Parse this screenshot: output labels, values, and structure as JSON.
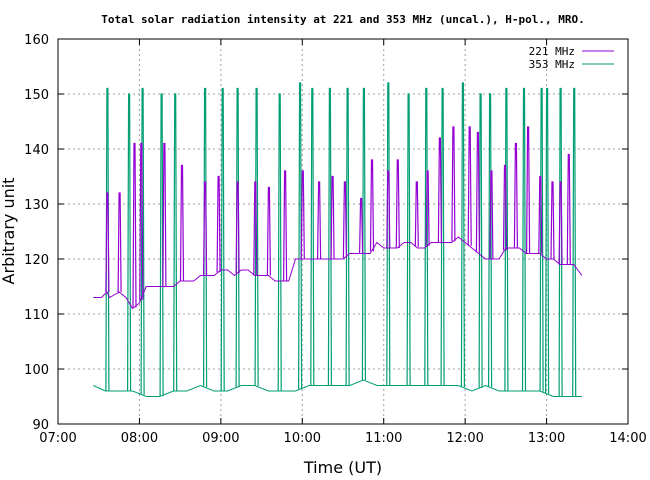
{
  "chart_data": {
    "type": "line",
    "title": "Total solar radiation intensity at 221 and 353 MHz (uncal.), H-pol., MRO.",
    "xlabel": "Time (UT)",
    "ylabel": "Arbitrary unit",
    "xlim": [
      "07:00",
      "14:00"
    ],
    "ylim": [
      90,
      160
    ],
    "x_ticks": [
      "07:00",
      "08:00",
      "09:00",
      "10:00",
      "11:00",
      "12:00",
      "13:00",
      "14:00"
    ],
    "y_ticks": [
      "90",
      "100",
      "110",
      "120",
      "130",
      "140",
      "150",
      "160"
    ],
    "grid": true,
    "legend_position": "top-right",
    "series": [
      {
        "name": "221 MHz",
        "color": "#9400d3",
        "x": [
          "07:26",
          "07:32",
          "07:36",
          "07:38",
          "07:45",
          "07:50",
          "07:55",
          "08:00",
          "08:05",
          "08:10",
          "08:15",
          "08:20",
          "08:25",
          "08:30",
          "08:35",
          "08:40",
          "08:45",
          "08:50",
          "08:55",
          "09:00",
          "09:05",
          "09:10",
          "09:15",
          "09:20",
          "09:25",
          "09:30",
          "09:35",
          "09:40",
          "09:45",
          "09:50",
          "09:55",
          "10:00",
          "10:05",
          "10:10",
          "10:15",
          "10:20",
          "10:25",
          "10:30",
          "10:35",
          "10:40",
          "10:45",
          "10:50",
          "10:55",
          "11:00",
          "11:05",
          "11:10",
          "11:15",
          "11:20",
          "11:25",
          "11:30",
          "11:35",
          "11:40",
          "11:45",
          "11:50",
          "11:55",
          "12:00",
          "12:05",
          "12:10",
          "12:15",
          "12:20",
          "12:25",
          "12:30",
          "12:35",
          "12:40",
          "12:45",
          "12:50",
          "12:55",
          "13:00",
          "13:05",
          "13:10",
          "13:15",
          "13:20",
          "13:26"
        ],
        "values": [
          113,
          113,
          114,
          113,
          114,
          113,
          111,
          112,
          115,
          115,
          115,
          115,
          115,
          116,
          116,
          116,
          117,
          117,
          117,
          118,
          118,
          117,
          118,
          118,
          117,
          117,
          117,
          116,
          116,
          116,
          120,
          120,
          120,
          120,
          120,
          120,
          120,
          120,
          121,
          121,
          121,
          121,
          123,
          122,
          122,
          122,
          123,
          123,
          122,
          122,
          123,
          123,
          123,
          123,
          124,
          123,
          122,
          121,
          120,
          120,
          120,
          122,
          122,
          122,
          121,
          121,
          121,
          120,
          120,
          119,
          119,
          119,
          117
        ],
        "peaks": [
          {
            "x": "07:36",
            "value": 132
          },
          {
            "x": "07:45",
            "value": 132
          },
          {
            "x": "07:56",
            "value": 141
          },
          {
            "x": "08:01",
            "value": 141
          },
          {
            "x": "08:18",
            "value": 141
          },
          {
            "x": "08:31",
            "value": 137
          },
          {
            "x": "08:48",
            "value": 134
          },
          {
            "x": "08:58",
            "value": 135
          },
          {
            "x": "09:12",
            "value": 134
          },
          {
            "x": "09:25",
            "value": 134
          },
          {
            "x": "09:35",
            "value": 133
          },
          {
            "x": "09:47",
            "value": 136
          },
          {
            "x": "10:00",
            "value": 136
          },
          {
            "x": "10:12",
            "value": 134
          },
          {
            "x": "10:22",
            "value": 135
          },
          {
            "x": "10:31",
            "value": 134
          },
          {
            "x": "10:43",
            "value": 131
          },
          {
            "x": "10:51",
            "value": 138
          },
          {
            "x": "11:03",
            "value": 136
          },
          {
            "x": "11:10",
            "value": 138
          },
          {
            "x": "11:24",
            "value": 134
          },
          {
            "x": "11:32",
            "value": 136
          },
          {
            "x": "11:41",
            "value": 142
          },
          {
            "x": "11:51",
            "value": 144
          },
          {
            "x": "12:03",
            "value": 144
          },
          {
            "x": "12:09",
            "value": 143
          },
          {
            "x": "12:19",
            "value": 136
          },
          {
            "x": "12:29",
            "value": 137
          },
          {
            "x": "12:37",
            "value": 141
          },
          {
            "x": "12:46",
            "value": 144
          },
          {
            "x": "12:55",
            "value": 135
          },
          {
            "x": "13:04",
            "value": 134
          },
          {
            "x": "13:10",
            "value": 134
          },
          {
            "x": "13:16",
            "value": 139
          }
        ]
      },
      {
        "name": "353 MHz",
        "color": "#009e73",
        "x": [
          "07:26",
          "07:35",
          "07:45",
          "07:55",
          "08:05",
          "08:15",
          "08:25",
          "08:35",
          "08:45",
          "08:55",
          "09:05",
          "09:15",
          "09:25",
          "09:35",
          "09:45",
          "09:55",
          "10:05",
          "10:15",
          "10:25",
          "10:35",
          "10:45",
          "10:55",
          "11:05",
          "11:15",
          "11:25",
          "11:35",
          "11:45",
          "11:55",
          "12:05",
          "12:15",
          "12:25",
          "12:35",
          "12:45",
          "12:55",
          "13:05",
          "13:15",
          "13:26"
        ],
        "values": [
          97,
          96,
          96,
          96,
          95,
          95,
          96,
          96,
          97,
          96,
          96,
          97,
          97,
          96,
          96,
          96,
          97,
          97,
          97,
          97,
          98,
          97,
          97,
          97,
          97,
          97,
          97,
          97,
          96,
          97,
          96,
          96,
          96,
          96,
          95,
          95,
          95
        ],
        "peaks": [
          {
            "x": "07:36",
            "value": 151
          },
          {
            "x": "07:52",
            "value": 150
          },
          {
            "x": "08:02",
            "value": 151
          },
          {
            "x": "08:16",
            "value": 150
          },
          {
            "x": "08:26",
            "value": 150
          },
          {
            "x": "08:48",
            "value": 151
          },
          {
            "x": "09:01",
            "value": 151
          },
          {
            "x": "09:12",
            "value": 151
          },
          {
            "x": "09:26",
            "value": 151
          },
          {
            "x": "09:43",
            "value": 150
          },
          {
            "x": "09:58",
            "value": 152
          },
          {
            "x": "10:07",
            "value": 151
          },
          {
            "x": "10:20",
            "value": 151
          },
          {
            "x": "10:33",
            "value": 151
          },
          {
            "x": "10:45",
            "value": 151
          },
          {
            "x": "11:03",
            "value": 152
          },
          {
            "x": "11:18",
            "value": 150
          },
          {
            "x": "11:31",
            "value": 151
          },
          {
            "x": "11:43",
            "value": 151
          },
          {
            "x": "11:58",
            "value": 152
          },
          {
            "x": "12:11",
            "value": 150
          },
          {
            "x": "12:18",
            "value": 150
          },
          {
            "x": "12:30",
            "value": 151
          },
          {
            "x": "12:43",
            "value": 151
          },
          {
            "x": "12:56",
            "value": 151
          },
          {
            "x": "13:00",
            "value": 151
          },
          {
            "x": "13:10",
            "value": 151
          },
          {
            "x": "13:20",
            "value": 151
          }
        ]
      }
    ]
  }
}
